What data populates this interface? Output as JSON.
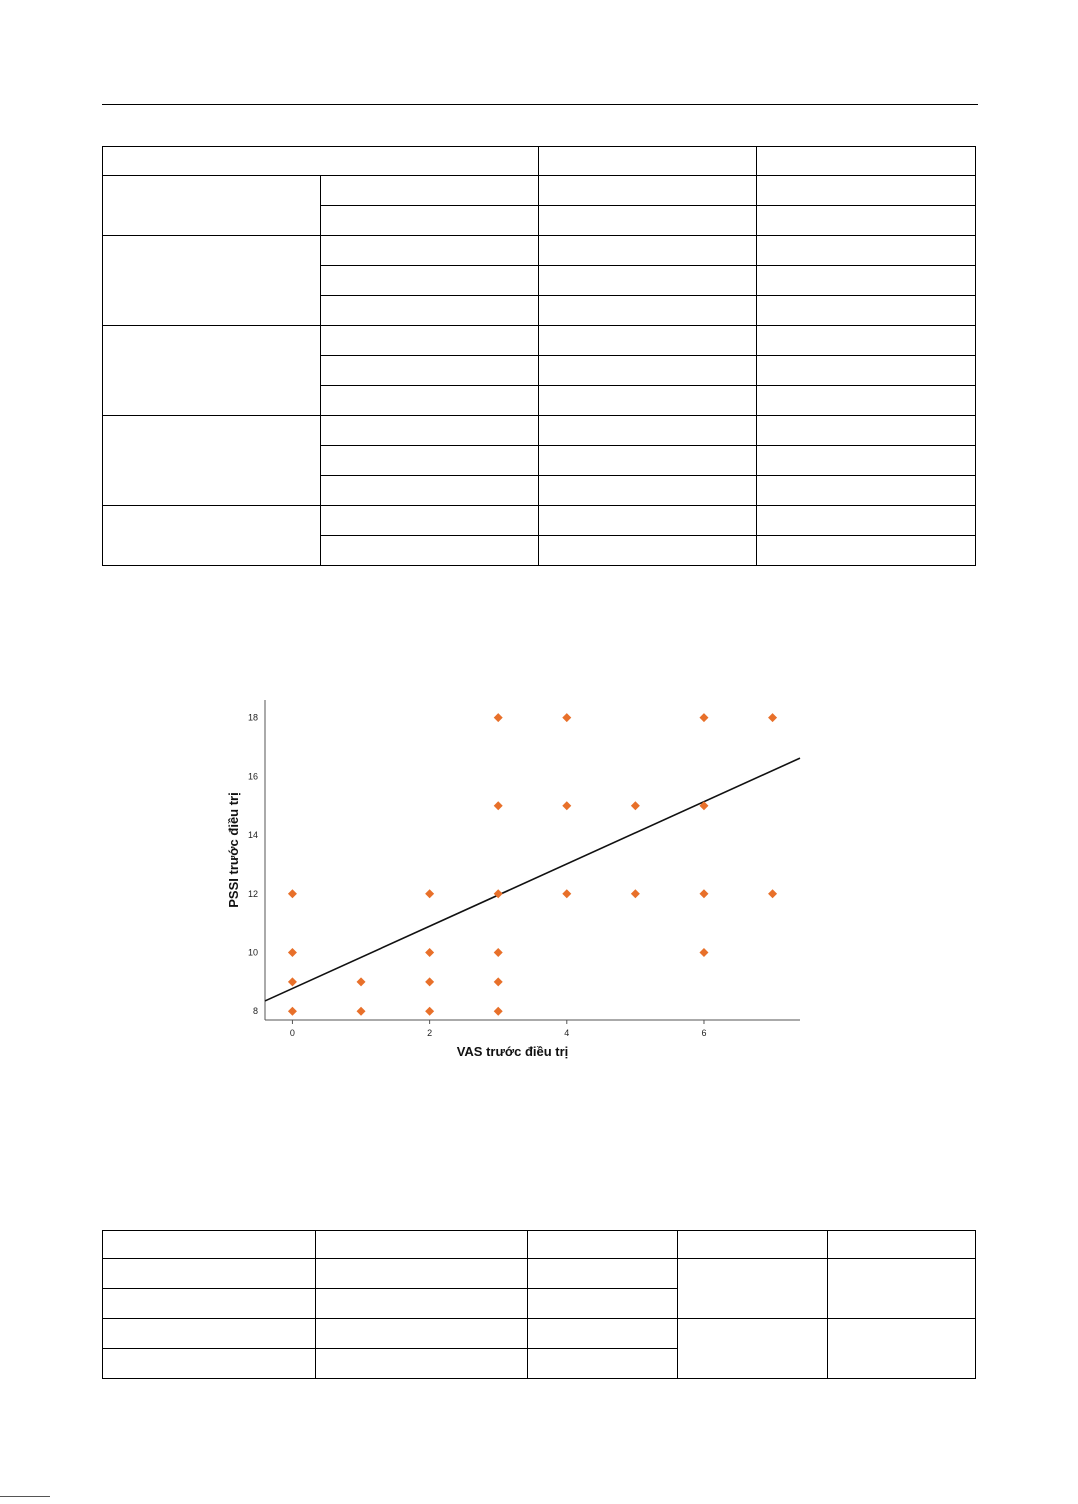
{
  "table1": {
    "header": [
      ""
    ],
    "groups": [
      {
        "rows": 2
      },
      {
        "rows": 3
      },
      {
        "rows": 3
      },
      {
        "rows": 3
      },
      {
        "rows": 2
      }
    ]
  },
  "table2": {
    "rows": 5
  },
  "chart_data": {
    "type": "scatter",
    "xlabel": "VAS trước điều trị",
    "ylabel": "PSSI trước điều trị",
    "xlim": [
      -0.4,
      7.4
    ],
    "ylim": [
      7.7,
      18.6
    ],
    "xticks": [
      0,
      2,
      4,
      6
    ],
    "yticks": [
      8,
      10,
      12,
      14,
      16,
      18
    ],
    "points": [
      {
        "x": 0,
        "y": 12
      },
      {
        "x": 0,
        "y": 10
      },
      {
        "x": 0,
        "y": 9
      },
      {
        "x": 0,
        "y": 8
      },
      {
        "x": 1,
        "y": 9
      },
      {
        "x": 1,
        "y": 8
      },
      {
        "x": 2,
        "y": 12
      },
      {
        "x": 2,
        "y": 10
      },
      {
        "x": 2,
        "y": 9
      },
      {
        "x": 2,
        "y": 8
      },
      {
        "x": 3,
        "y": 18
      },
      {
        "x": 3,
        "y": 15
      },
      {
        "x": 3,
        "y": 12
      },
      {
        "x": 3,
        "y": 10
      },
      {
        "x": 3,
        "y": 9
      },
      {
        "x": 3,
        "y": 8
      },
      {
        "x": 4,
        "y": 18
      },
      {
        "x": 4,
        "y": 15
      },
      {
        "x": 4,
        "y": 12
      },
      {
        "x": 5,
        "y": 15
      },
      {
        "x": 5,
        "y": 12
      },
      {
        "x": 6,
        "y": 18
      },
      {
        "x": 6,
        "y": 15
      },
      {
        "x": 6,
        "y": 12
      },
      {
        "x": 6,
        "y": 10
      },
      {
        "x": 7,
        "y": 18
      },
      {
        "x": 7,
        "y": 12
      }
    ],
    "fit_line": {
      "x": [
        -0.4,
        7.4
      ],
      "y": [
        8.35,
        16.62
      ]
    },
    "marker_color": "#e8702a",
    "line_color": "#111111",
    "grid": false
  }
}
